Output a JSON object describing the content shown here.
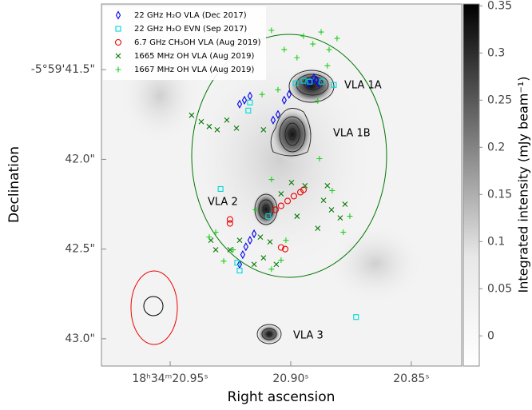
{
  "chart_data": {
    "type": "scatter",
    "xlabel": "Right ascension",
    "ylabel": "Declination",
    "xlim": [
      20.9785,
      20.8291
    ],
    "ylim": [
      41.134,
      43.152
    ],
    "xticks": [
      {
        "value": 20.95,
        "label": "18ʰ34ᵐ20.95ˢ"
      },
      {
        "value": 20.9,
        "label": "20.90ˢ"
      },
      {
        "value": 20.85,
        "label": "20.85ˢ"
      }
    ],
    "yticks": [
      {
        "value": 41.5,
        "label": "-5°59'41.5\""
      },
      {
        "value": 42.0,
        "label": "42.0\""
      },
      {
        "value": 42.5,
        "label": "42.5\""
      },
      {
        "value": 43.0,
        "label": "43.0\""
      }
    ],
    "legend": "upper left",
    "annotations": [
      "VLA 1A",
      "VLA 1B",
      "VLA 2",
      "VLA 3"
    ],
    "colorbar": {
      "label": "Integrated intensity (mJy beam⁻¹)",
      "lim": [
        -0.032,
        0.352
      ],
      "ticks": [
        0,
        0.05,
        0.1,
        0.15,
        0.2,
        0.25,
        0.3,
        0.35
      ]
    },
    "series": [
      {
        "name": "22 GHz H₂O VLA (Dec 2017)",
        "color": "#0000ee",
        "marker": "diamond",
        "x": [
          20.8904,
          20.8894,
          20.8914,
          20.8927,
          20.8884,
          20.9007,
          20.9027,
          20.9053,
          20.9073,
          20.9169,
          20.9192,
          20.9212,
          20.9152,
          20.9169,
          20.9186,
          20.9199,
          20.9212
        ],
        "values": [
          41.545,
          41.558,
          41.567,
          41.576,
          41.576,
          41.638,
          41.67,
          41.75,
          41.781,
          41.647,
          41.67,
          41.692,
          42.415,
          42.451,
          42.487,
          42.531,
          42.585
        ]
      },
      {
        "name": "22 GHz H₂O EVN (Sep 2017)",
        "color": "#00d8d8",
        "marker": "square",
        "x": [
          20.898,
          20.8947,
          20.8921,
          20.8871,
          20.8821,
          20.9169,
          20.9176,
          20.9291,
          20.9093,
          20.8729,
          20.9222,
          20.9212
        ],
        "values": [
          41.576,
          41.562,
          41.567,
          41.567,
          41.585,
          41.683,
          41.728,
          42.165,
          42.317,
          42.879,
          42.576,
          42.62
        ]
      },
      {
        "name": "6.7 GHz CH₃OH VLA (Aug 2019)",
        "color": "#ee0000",
        "marker": "circle",
        "x": [
          20.9252,
          20.9252,
          20.9063,
          20.904,
          20.9013,
          20.8987,
          20.896,
          20.8947,
          20.904,
          20.9023
        ],
        "values": [
          42.335,
          42.357,
          42.281,
          42.259,
          42.232,
          42.205,
          42.183,
          42.17,
          42.491,
          42.5
        ]
      },
      {
        "name": "1665 MHz OH VLA (Aug 2019)",
        "color": "#007700",
        "marker": "x",
        "x": [
          20.9411,
          20.9371,
          20.9338,
          20.9305,
          20.9265,
          20.9225,
          20.9113,
          20.8997,
          20.8941,
          20.8864,
          20.8831,
          20.8795,
          20.8775,
          20.8848,
          20.904,
          20.8888,
          20.9086,
          20.9113,
          20.9152,
          20.9212,
          20.9311,
          20.9331,
          20.9252,
          20.8974,
          20.9126,
          20.906
        ],
        "values": [
          41.754,
          41.79,
          41.817,
          41.835,
          41.781,
          41.826,
          41.835,
          42.129,
          42.147,
          42.228,
          42.281,
          42.326,
          42.25,
          42.147,
          42.192,
          42.384,
          42.46,
          42.549,
          42.585,
          42.451,
          42.504,
          42.451,
          42.504,
          42.317,
          42.433,
          42.585
        ]
      },
      {
        "name": "1667 MHz OH VLA (Aug 2019)",
        "color": "#22cc22",
        "marker": "plus",
        "x": [
          20.8947,
          20.8908,
          20.8874,
          20.8841,
          20.8808,
          20.8974,
          20.9027,
          20.908,
          20.8848,
          20.9053,
          20.9119,
          20.8888,
          20.8782,
          20.8755,
          20.8828,
          20.902,
          20.904,
          20.9338,
          20.9311,
          20.9239,
          20.908,
          20.9146,
          20.9278,
          20.8881,
          20.908
        ],
        "values": [
          41.313,
          41.357,
          41.29,
          41.388,
          41.326,
          41.433,
          41.388,
          41.281,
          41.478,
          41.612,
          41.638,
          41.674,
          42.406,
          42.317,
          42.174,
          42.451,
          42.562,
          42.433,
          42.406,
          42.504,
          42.612,
          42.281,
          42.567,
          41.996,
          42.112
        ]
      }
    ]
  }
}
